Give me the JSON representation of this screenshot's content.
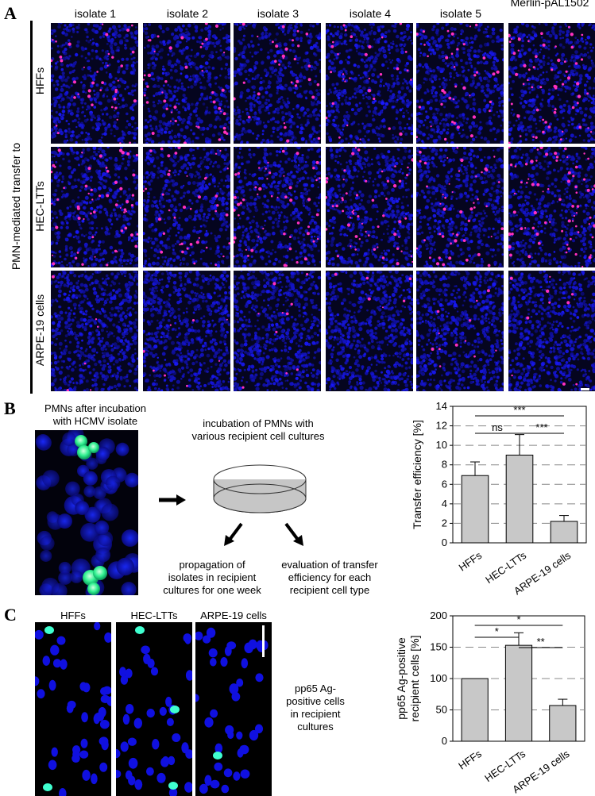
{
  "panels": {
    "a": "A",
    "b": "B",
    "c": "C"
  },
  "panel_a": {
    "columns": [
      "isolate 1",
      "isolate 2",
      "isolate 3",
      "isolate 4",
      "isolate 5",
      "Merlin-pAL1502"
    ],
    "rows": [
      "HFFs",
      "HEC-LTTs",
      "ARPE-19 cells"
    ],
    "side_label": "PMN-mediated transfer to"
  },
  "panel_b": {
    "image_caption_1": "PMNs after incubation",
    "image_caption_2": "with HCMV isolate",
    "step1_line1": "incubation of PMNs with",
    "step1_line2": "various recipient cell cultures",
    "step2_line1": "propagation of",
    "step2_line2": "isolates in recipient",
    "step2_line3": "cultures for one week",
    "step3_line1": "evaluation of transfer",
    "step3_line2": "efficiency for each",
    "step3_line3": "recipient cell type"
  },
  "panel_c": {
    "image_labels": [
      "HFFs",
      "HEC-LTTs",
      "ARPE-19 cells"
    ],
    "side_text_1": "pp65 Ag-",
    "side_text_2": "positive cells",
    "side_text_3": "in recipient",
    "side_text_4": "cultures"
  },
  "colors": {
    "bar_fill": "#c8c8c8",
    "nuclei": "#1010e0",
    "infected": "#ff30c0",
    "pp65": "#40ffd0"
  },
  "chart_data": [
    {
      "type": "bar",
      "categories": [
        "HFFs",
        "HEC-LTTs",
        "ARPE-19 cells"
      ],
      "values": [
        6.9,
        9.0,
        2.2
      ],
      "errors": [
        1.4,
        2.1,
        0.6
      ],
      "ylabel": "Transfer efficiency [%]",
      "ylim": [
        0,
        14
      ],
      "yticks": [
        0,
        2,
        4,
        6,
        8,
        10,
        12,
        14
      ],
      "grid": "dashed horizontal",
      "significance": [
        {
          "from": 0,
          "to": 1,
          "label": "ns"
        },
        {
          "from": 1,
          "to": 2,
          "label": "***"
        },
        {
          "from": 0,
          "to": 2,
          "label": "***"
        }
      ]
    },
    {
      "type": "bar",
      "categories": [
        "HFFs",
        "HEC-LTTs",
        "ARPE-19 cells"
      ],
      "values": [
        100,
        153,
        57
      ],
      "errors": [
        0,
        20,
        10
      ],
      "ylabel": "pp65 Ag-positive recipient cells [%]",
      "ylabel_lines": [
        "pp65 Ag-positive",
        "recipient cells [%]"
      ],
      "ylim": [
        0,
        200
      ],
      "yticks": [
        0,
        50,
        100,
        150,
        200
      ],
      "grid": "dashed horizontal",
      "significance": [
        {
          "from": 0,
          "to": 1,
          "label": "*"
        },
        {
          "from": 1,
          "to": 2,
          "label": "**"
        },
        {
          "from": 0,
          "to": 2,
          "label": "*"
        }
      ]
    }
  ]
}
